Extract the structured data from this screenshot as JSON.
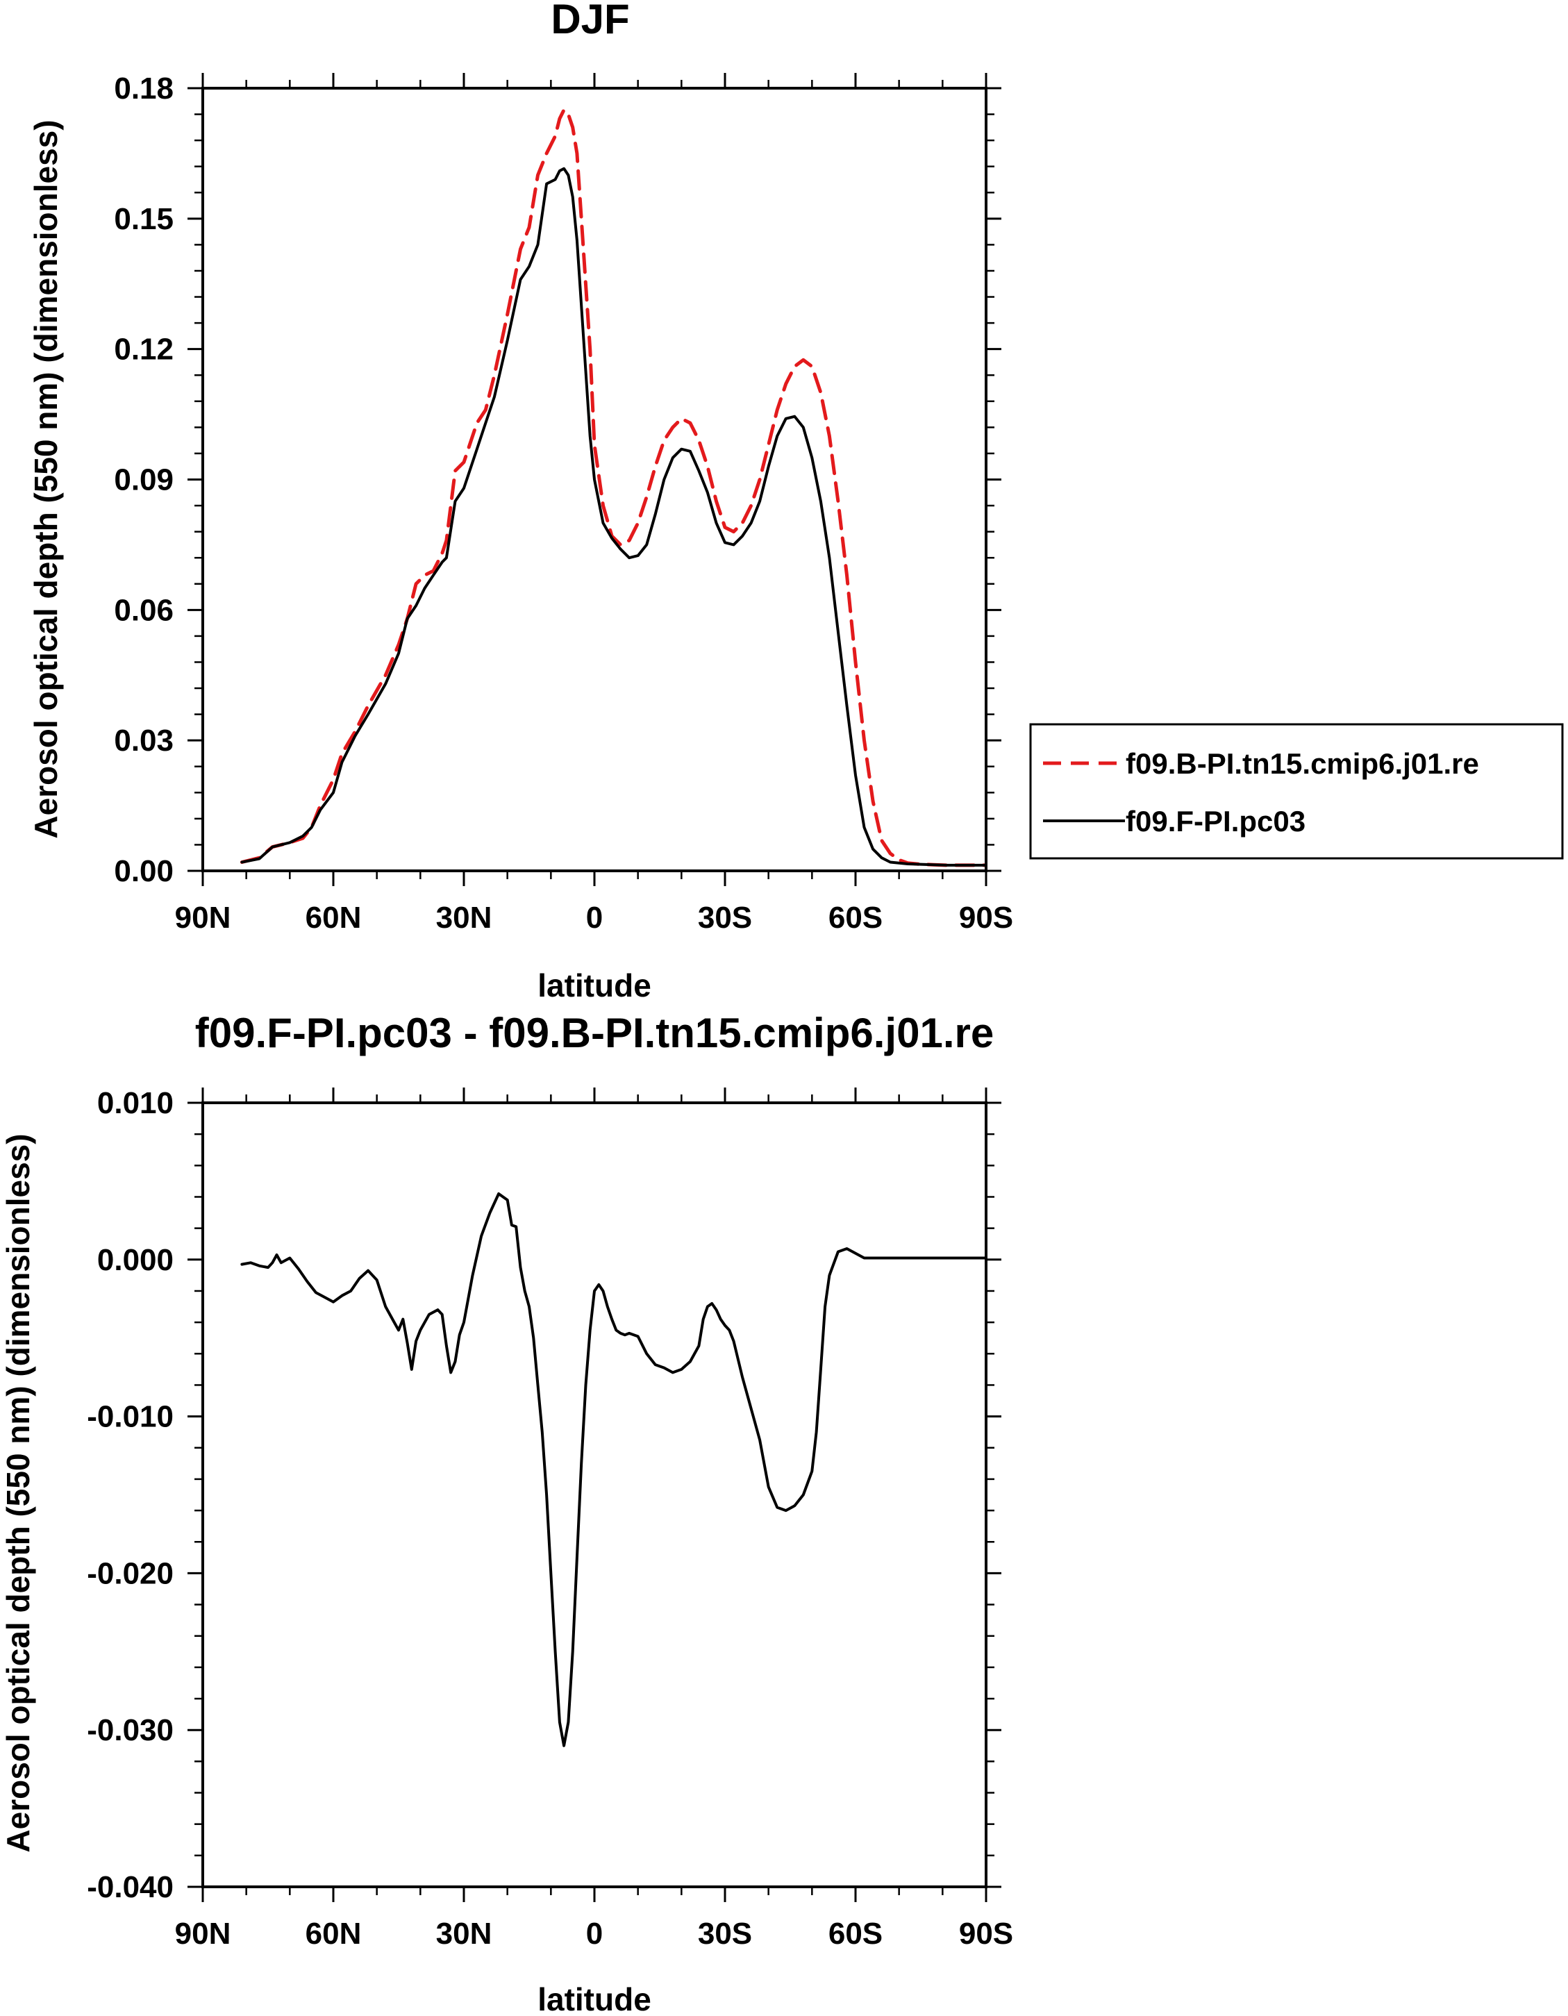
{
  "chart_data": [
    {
      "type": "line",
      "title": "DJF",
      "xlabel": "latitude",
      "ylabel": "Aerosol optical depth (550 nm) (dimensionless)",
      "xlim": [
        90,
        -90
      ],
      "ylim": [
        0,
        0.18
      ],
      "xticks": [
        90,
        60,
        30,
        0,
        -30,
        -60,
        -90
      ],
      "xtick_labels": [
        "90N",
        "60N",
        "30N",
        "0",
        "30S",
        "60S",
        "90S"
      ],
      "yticks": [
        0,
        0.03,
        0.06,
        0.09,
        0.12,
        0.15,
        0.18
      ],
      "ytick_labels": [
        "0.00",
        "0.03",
        "0.06",
        "0.09",
        "0.12",
        "0.15",
        "0.18"
      ],
      "grid": false,
      "legend_position": "outside-right",
      "series": [
        {
          "name": "f09.B-PI.tn15.cmip6.j01.re",
          "color": "#e31a1c",
          "dash": "dashed",
          "x": [
            81,
            77,
            74,
            70,
            67,
            65,
            63,
            60,
            58,
            55,
            52,
            48,
            45,
            43,
            41,
            39,
            37,
            35,
            34,
            32,
            30,
            27,
            25,
            23,
            20,
            17,
            15,
            13,
            11,
            9,
            8,
            7,
            6,
            5,
            4,
            3,
            1,
            0,
            -2,
            -4,
            -6,
            -8,
            -10,
            -12,
            -14,
            -16,
            -18,
            -20,
            -22,
            -24,
            -26,
            -28,
            -30,
            -32,
            -34,
            -36,
            -38,
            -40,
            -42,
            -44,
            -46,
            -48,
            -50,
            -52,
            -54,
            -56,
            -58,
            -60,
            -62,
            -64,
            -66,
            -68,
            -70,
            -72,
            -75,
            -78,
            -81,
            -85,
            -90
          ],
          "values": [
            0.002,
            0.003,
            0.0055,
            0.0065,
            0.0075,
            0.01,
            0.015,
            0.021,
            0.027,
            0.032,
            0.038,
            0.045,
            0.052,
            0.058,
            0.066,
            0.068,
            0.069,
            0.073,
            0.076,
            0.092,
            0.094,
            0.103,
            0.106,
            0.114,
            0.128,
            0.143,
            0.148,
            0.16,
            0.165,
            0.169,
            0.173,
            0.175,
            0.174,
            0.171,
            0.165,
            0.15,
            0.12,
            0.098,
            0.084,
            0.077,
            0.075,
            0.076,
            0.08,
            0.086,
            0.093,
            0.099,
            0.102,
            0.104,
            0.103,
            0.099,
            0.093,
            0.085,
            0.079,
            0.078,
            0.08,
            0.084,
            0.09,
            0.098,
            0.106,
            0.112,
            0.116,
            0.1175,
            0.116,
            0.11,
            0.1,
            0.085,
            0.068,
            0.048,
            0.03,
            0.016,
            0.007,
            0.004,
            0.0025,
            0.0018,
            0.0015,
            0.0014,
            0.0013,
            0.0013,
            0.0013
          ]
        },
        {
          "name": "f09.F-PI.pc03",
          "color": "#000000",
          "dash": "solid",
          "x": [
            81,
            77,
            74,
            70,
            67,
            65,
            63,
            60,
            58,
            55,
            52,
            48,
            45,
            43,
            41,
            39,
            37,
            35,
            34,
            32,
            30,
            27,
            25,
            23,
            20,
            17,
            15,
            13,
            11,
            9,
            8,
            7,
            6,
            5,
            4,
            3,
            1,
            0,
            -2,
            -4,
            -6,
            -8,
            -10,
            -12,
            -14,
            -16,
            -18,
            -20,
            -22,
            -24,
            -26,
            -28,
            -30,
            -32,
            -34,
            -36,
            -38,
            -40,
            -42,
            -44,
            -46,
            -48,
            -50,
            -52,
            -54,
            -56,
            -58,
            -60,
            -62,
            -64,
            -66,
            -68,
            -70,
            -72,
            -75,
            -78,
            -81,
            -85,
            -90
          ],
          "values": [
            0.002,
            0.0028,
            0.0055,
            0.0065,
            0.008,
            0.01,
            0.014,
            0.018,
            0.025,
            0.031,
            0.036,
            0.043,
            0.05,
            0.058,
            0.061,
            0.065,
            0.068,
            0.071,
            0.072,
            0.085,
            0.088,
            0.097,
            0.103,
            0.109,
            0.122,
            0.136,
            0.139,
            0.144,
            0.158,
            0.159,
            0.161,
            0.1615,
            0.16,
            0.155,
            0.145,
            0.13,
            0.1,
            0.09,
            0.08,
            0.0765,
            0.074,
            0.072,
            0.0725,
            0.075,
            0.082,
            0.09,
            0.095,
            0.097,
            0.0965,
            0.092,
            0.087,
            0.08,
            0.0755,
            0.075,
            0.077,
            0.08,
            0.085,
            0.093,
            0.1,
            0.104,
            0.1045,
            0.102,
            0.095,
            0.085,
            0.072,
            0.055,
            0.038,
            0.022,
            0.01,
            0.005,
            0.003,
            0.002,
            0.0018,
            0.0016,
            0.0015,
            0.0014,
            0.0013,
            0.0013,
            0.0013
          ]
        }
      ]
    },
    {
      "type": "line",
      "title": "f09.F-PI.pc03 - f09.B-PI.tn15.cmip6.j01.re",
      "xlabel": "latitude",
      "ylabel": "Aerosol optical depth (550 nm) (dimensionless)",
      "xlim": [
        90,
        -90
      ],
      "ylim": [
        -0.04,
        0.01
      ],
      "xticks": [
        90,
        60,
        30,
        0,
        -30,
        -60,
        -90
      ],
      "xtick_labels": [
        "90N",
        "60N",
        "30N",
        "0",
        "30S",
        "60S",
        "90S"
      ],
      "yticks": [
        -0.04,
        -0.03,
        -0.02,
        -0.01,
        0,
        0.01
      ],
      "ytick_labels": [
        "-0.040",
        "-0.030",
        "-0.020",
        "-0.010",
        "0.000",
        "0.010"
      ],
      "grid": false,
      "series": [
        {
          "color": "#000000",
          "dash": "solid",
          "x": [
            81,
            79,
            77,
            75,
            74,
            73,
            72,
            70,
            68,
            66,
            64,
            62,
            60,
            58,
            56,
            54,
            52,
            50,
            48,
            46,
            45,
            44,
            43,
            42,
            41,
            40,
            38,
            36,
            35,
            34,
            33,
            32,
            31,
            30,
            28,
            26,
            24,
            22,
            20,
            19,
            18,
            17,
            16,
            15,
            14,
            13,
            12,
            11,
            10,
            9,
            8,
            7,
            6,
            5,
            4,
            3,
            2,
            1,
            0,
            -1,
            -2,
            -3,
            -4,
            -5,
            -6,
            -7,
            -8,
            -10,
            -12,
            -14,
            -16,
            -18,
            -20,
            -22,
            -24,
            -25,
            -26,
            -27,
            -28,
            -29,
            -30,
            -31,
            -32,
            -34,
            -36,
            -38,
            -40,
            -42,
            -44,
            -46,
            -48,
            -50,
            -51,
            -52,
            -53,
            -54,
            -56,
            -58,
            -60,
            -62,
            -64,
            -66,
            -68,
            -70,
            -72,
            -75,
            -78,
            -81,
            -85,
            -90
          ],
          "values": [
            -0.0003,
            -0.0002,
            -0.0004,
            -0.0005,
            -0.0002,
            0.0003,
            -0.0002,
            0.0001,
            -0.0006,
            -0.0014,
            -0.0021,
            -0.0024,
            -0.0027,
            -0.0023,
            -0.002,
            -0.0012,
            -0.0007,
            -0.0013,
            -0.003,
            -0.004,
            -0.0045,
            -0.0038,
            -0.0053,
            -0.007,
            -0.0052,
            -0.0045,
            -0.0035,
            -0.0032,
            -0.0035,
            -0.0055,
            -0.0072,
            -0.0065,
            -0.0048,
            -0.004,
            -0.001,
            0.0015,
            0.003,
            0.0042,
            0.0038,
            0.0022,
            0.0021,
            -0.0005,
            -0.002,
            -0.003,
            -0.005,
            -0.008,
            -0.011,
            -0.015,
            -0.02,
            -0.025,
            -0.0295,
            -0.031,
            -0.0295,
            -0.025,
            -0.019,
            -0.013,
            -0.008,
            -0.0045,
            -0.002,
            -0.0016,
            -0.002,
            -0.003,
            -0.0038,
            -0.0045,
            -0.0047,
            -0.0048,
            -0.0047,
            -0.0049,
            -0.006,
            -0.0067,
            -0.0069,
            -0.0072,
            -0.007,
            -0.0065,
            -0.0055,
            -0.0038,
            -0.003,
            -0.0028,
            -0.0032,
            -0.0038,
            -0.0042,
            -0.0045,
            -0.0052,
            -0.0075,
            -0.0095,
            -0.0115,
            -0.0145,
            -0.0158,
            -0.016,
            -0.0157,
            -0.015,
            -0.0135,
            -0.011,
            -0.007,
            -0.003,
            -0.001,
            0.0005,
            0.0007,
            0.0004,
            0.0001,
            0.0001,
            0.0001,
            0.0001,
            0.0001,
            0.0001,
            0.0001,
            0.0001,
            0.0001,
            0.0001,
            0.0001
          ]
        }
      ]
    }
  ]
}
